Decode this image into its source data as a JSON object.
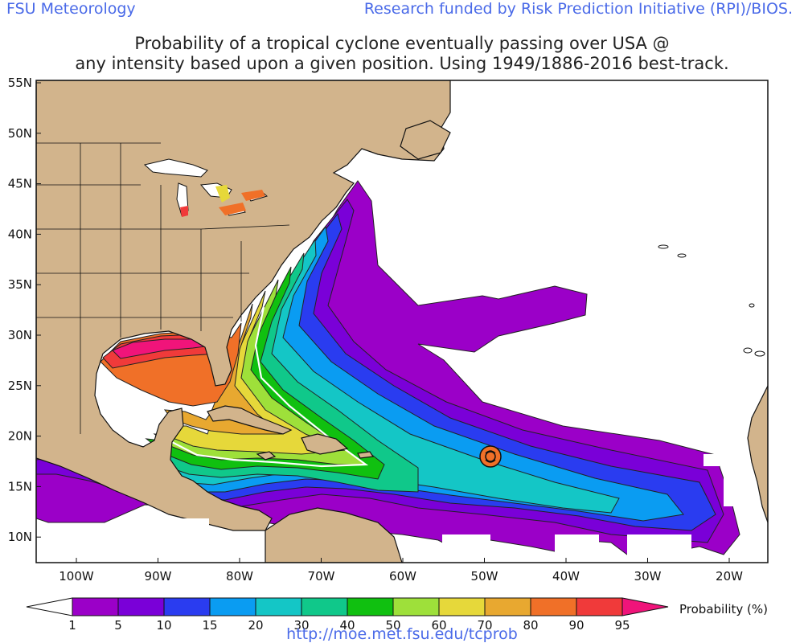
{
  "header": {
    "left": "FSU Meteorology",
    "right": "Research funded by Risk Prediction Initiative (RPI)/BIOS."
  },
  "title": {
    "line1": "Probability of a tropical cyclone eventually passing over USA @",
    "line2": "any intensity based upon a given position.  Using 1949/1886-2016 best-track."
  },
  "axes": {
    "lat_labels": [
      "55N",
      "50N",
      "45N",
      "40N",
      "35N",
      "30N",
      "25N",
      "20N",
      "15N",
      "10N"
    ],
    "lon_labels": [
      "100W",
      "90W",
      "80W",
      "70W",
      "60W",
      "50W",
      "40W",
      "30W",
      "20W"
    ]
  },
  "legend": {
    "title": "Probability (%)",
    "ticks": [
      "1",
      "5",
      "10",
      "15",
      "20",
      "30",
      "40",
      "50",
      "60",
      "70",
      "80",
      "90",
      "95"
    ],
    "colors": [
      "#9b00c8",
      "#7a00d8",
      "#2a3cf0",
      "#0a9cf2",
      "#14c6c6",
      "#10c88a",
      "#10c010",
      "#9ee03a",
      "#e6d83a",
      "#e8a830",
      "#f07028",
      "#f03a3a",
      "#f0147a"
    ]
  },
  "colors": {
    "land": "#d2b48c",
    "ocean_white": "#ffffff",
    "header_blue": "#4a6ae8"
  },
  "storm_marker": {
    "icon": "hurricane-icon",
    "lat": "17.8N",
    "lon": "50.2W"
  },
  "footer": {
    "url": "http://moe.met.fsu.edu/tcprob"
  }
}
